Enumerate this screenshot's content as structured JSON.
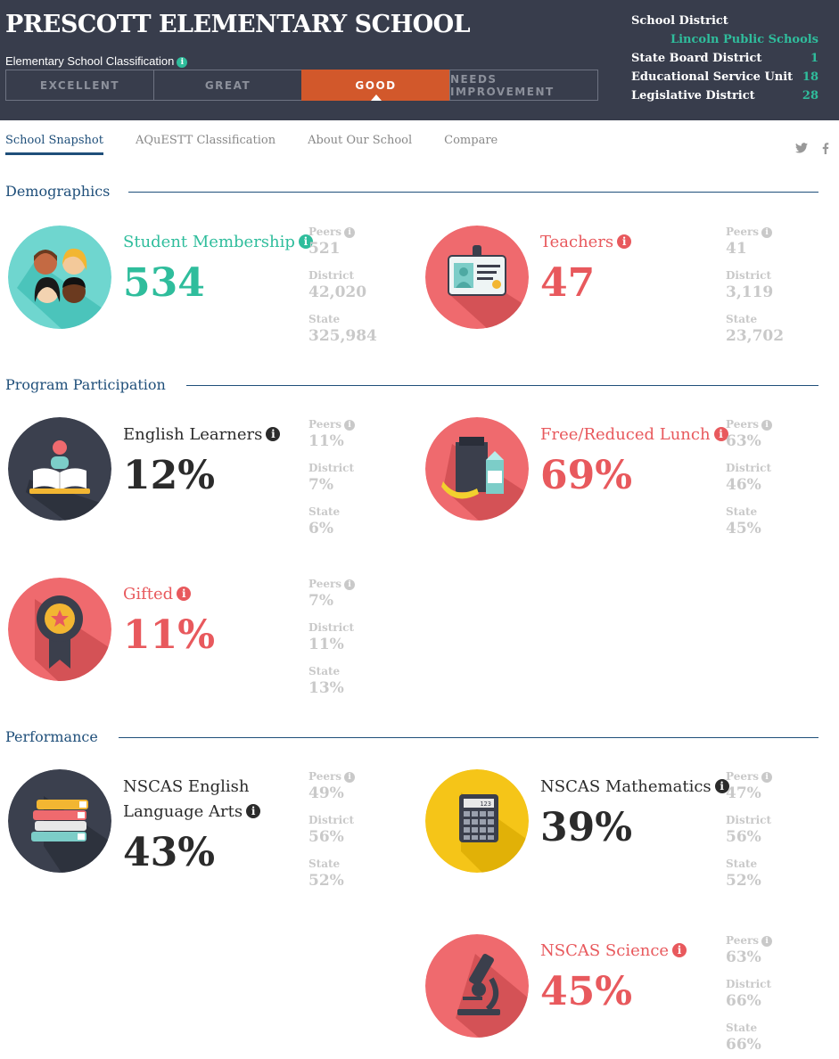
{
  "header": {
    "school_name": "PRESCOTT ELEMENTARY SCHOOL",
    "classification_label": "Elementary School Classification",
    "ratings": [
      "EXCELLENT",
      "GREAT",
      "GOOD",
      "NEEDS IMPROVEMENT"
    ],
    "active_rating": "GOOD",
    "district": {
      "school_district_label": "School District",
      "school_district_value": "Lincoln Public Schools",
      "state_board_label": "State Board District",
      "state_board_value": "1",
      "esu_label": "Educational Service Unit",
      "esu_value": "18",
      "legislative_label": "Legislative District",
      "legislative_value": "28"
    }
  },
  "tabs": [
    "School Snapshot",
    "AQuESTT Classification",
    "About Our School",
    "Compare"
  ],
  "active_tab": "School Snapshot",
  "social": {
    "twitter": "twitter-icon",
    "facebook": "facebook-icon"
  },
  "sections": {
    "demographics": "Demographics",
    "program": "Program Participation",
    "performance": "Performance"
  },
  "compare_labels": {
    "peers": "Peers",
    "district": "District",
    "state": "State"
  },
  "stats": {
    "membership": {
      "label": "Student Membership",
      "value": "534",
      "peers": "521",
      "district": "42,020",
      "state": "325,984",
      "icon": "students-icon"
    },
    "teachers": {
      "label": "Teachers",
      "value": "47",
      "peers": "41",
      "district": "3,119",
      "state": "23,702",
      "icon": "id-badge-icon"
    },
    "english_learners": {
      "label": "English Learners",
      "value": "12%",
      "peers": "11%",
      "district": "7%",
      "state": "6%",
      "icon": "reader-book-icon"
    },
    "lunch": {
      "label": "Free/Reduced Lunch",
      "value": "69%",
      "peers": "63%",
      "district": "46%",
      "state": "45%",
      "icon": "lunch-bag-icon"
    },
    "gifted": {
      "label": "Gifted",
      "value": "11%",
      "peers": "7%",
      "district": "11%",
      "state": "13%",
      "icon": "award-ribbon-icon"
    },
    "ela": {
      "label_line1": "NSCAS English",
      "label_line2": "Language Arts",
      "value": "43%",
      "peers": "49%",
      "district": "56%",
      "state": "52%",
      "icon": "book-stack-icon"
    },
    "math": {
      "label": "NSCAS Mathematics",
      "value": "39%",
      "peers": "47%",
      "district": "56%",
      "state": "52%",
      "icon": "calculator-icon",
      "calc_display": "123"
    },
    "science": {
      "label": "NSCAS Science",
      "value": "45%",
      "peers": "63%",
      "district": "66%",
      "state": "66%",
      "icon": "microscope-icon"
    }
  },
  "colors": {
    "header_bg": "#383d4c",
    "accent_teal": "#2fbd9c",
    "accent_red": "#e8595d",
    "rating_active": "#d2582b",
    "section_blue": "#1f4f7a",
    "muted": "#c9c9c9",
    "yellow": "#f5c518"
  }
}
